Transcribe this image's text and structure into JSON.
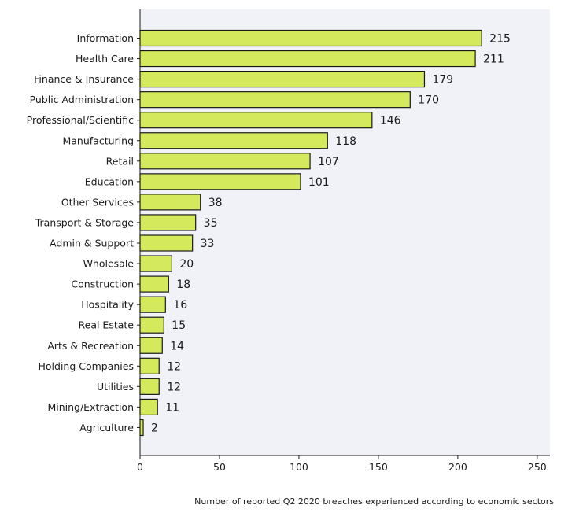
{
  "caption": "Number of reported Q2 2020 breaches experienced according to economic sectors",
  "colors": {
    "bar_fill": "#d4e95c",
    "bar_stroke": "#1a1a1a",
    "plot_background": "#f0f2f8"
  },
  "chart_data": {
    "type": "bar",
    "orientation": "horizontal",
    "categories": [
      "Information",
      "Health Care",
      "Finance & Insurance",
      "Public Administration",
      "Professional/Scientific",
      "Manufacturing",
      "Retail",
      "Education",
      "Other Services",
      "Transport & Storage",
      "Admin & Support",
      "Wholesale",
      "Construction",
      "Hospitality",
      "Real Estate",
      "Arts & Recreation",
      "Holding Companies",
      "Utilities",
      "Mining/Extraction",
      "Agriculture"
    ],
    "values": [
      215,
      211,
      179,
      170,
      146,
      118,
      107,
      101,
      38,
      35,
      33,
      20,
      18,
      16,
      15,
      14,
      12,
      12,
      11,
      2
    ],
    "xlim": [
      0,
      258
    ],
    "xticks": [
      0,
      50,
      100,
      150,
      200,
      250
    ],
    "data_labels": true,
    "grid": false,
    "title": "",
    "xlabel": "",
    "ylabel": ""
  }
}
